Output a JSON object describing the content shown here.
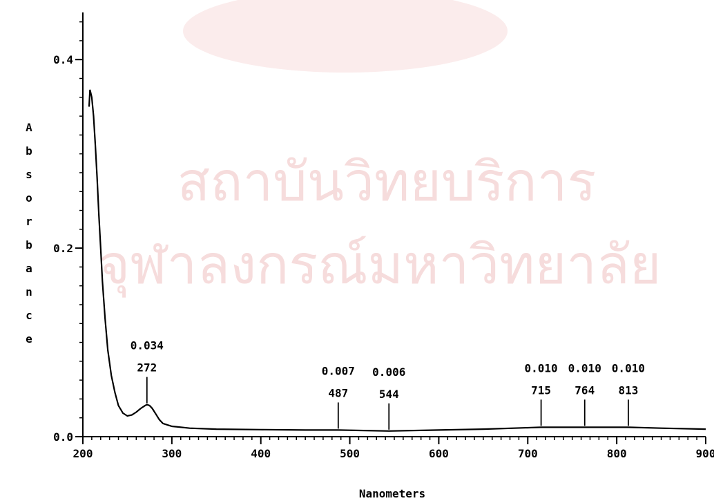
{
  "chart_data": {
    "type": "line",
    "title": "",
    "xlabel": "Nanometers",
    "ylabel": "Absorbance",
    "xlim": [
      200,
      900
    ],
    "ylim": [
      0.0,
      0.45
    ],
    "x_ticks": [
      200,
      300,
      400,
      500,
      600,
      700,
      800,
      900
    ],
    "x_tick_labels": [
      "200",
      "300",
      "400",
      "500",
      "600",
      "700",
      "800",
      "900"
    ],
    "y_ticks": [
      0.0,
      0.2,
      0.4
    ],
    "y_tick_labels": [
      "0.0",
      "0.2",
      "0.4"
    ],
    "grid": false,
    "series": [
      {
        "x": [
          207,
          208,
          210,
          212,
          214,
          216,
          218,
          220,
          222,
          225,
          228,
          232,
          236,
          240,
          245,
          250,
          255,
          260,
          265,
          270,
          272,
          275,
          278,
          282,
          286,
          290,
          300,
          320,
          350,
          400,
          450,
          487,
          500,
          544,
          600,
          650,
          715,
          764,
          813,
          850,
          900
        ],
        "y": [
          0.35,
          0.368,
          0.36,
          0.34,
          0.31,
          0.275,
          0.235,
          0.2,
          0.165,
          0.125,
          0.092,
          0.065,
          0.047,
          0.033,
          0.025,
          0.022,
          0.023,
          0.026,
          0.03,
          0.033,
          0.034,
          0.033,
          0.03,
          0.024,
          0.018,
          0.014,
          0.011,
          0.009,
          0.008,
          0.0075,
          0.007,
          0.007,
          0.0068,
          0.006,
          0.007,
          0.008,
          0.01,
          0.01,
          0.01,
          0.009,
          0.008
        ]
      }
    ],
    "peaks": [
      {
        "x": 272,
        "y": 0.034,
        "x_label": "272",
        "y_label": "0.034"
      },
      {
        "x": 487,
        "y": 0.007,
        "x_label": "487",
        "y_label": "0.007"
      },
      {
        "x": 544,
        "y": 0.006,
        "x_label": "544",
        "y_label": "0.006"
      },
      {
        "x": 715,
        "y": 0.01,
        "x_label": "715",
        "y_label": "0.010"
      },
      {
        "x": 764,
        "y": 0.01,
        "x_label": "764",
        "y_label": "0.010"
      },
      {
        "x": 813,
        "y": 0.01,
        "x_label": "813",
        "y_label": "0.010"
      }
    ]
  },
  "watermark": {
    "line1": "สถาบันวิทยบริการ",
    "line2": "จุฬาลงกรณ์มหาวิทยาลัย",
    "color": "#f6dcdc"
  }
}
